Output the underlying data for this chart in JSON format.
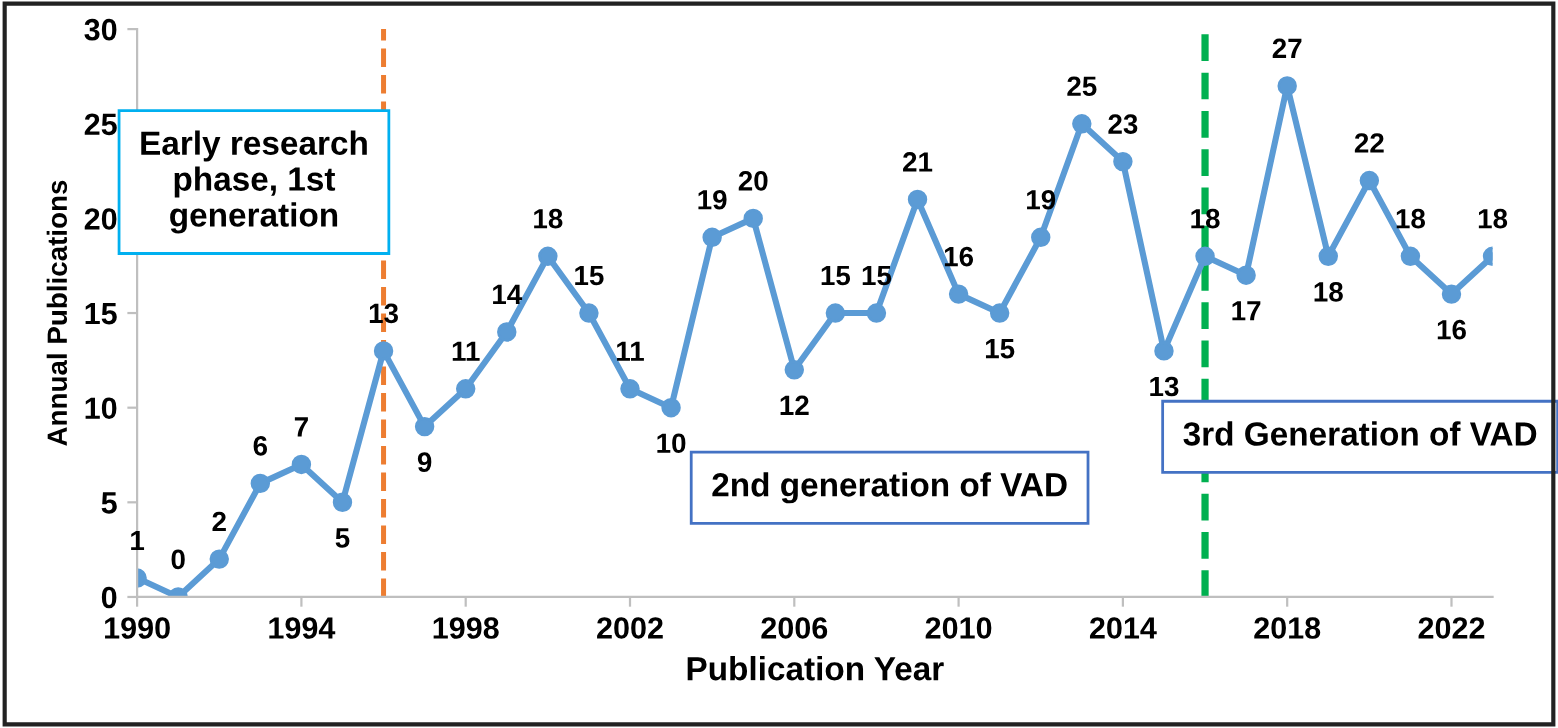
{
  "chart_data": {
    "type": "line",
    "xlabel": "Publication Year",
    "ylabel": "Annual Publications",
    "x": [
      1990,
      1991,
      1992,
      1993,
      1994,
      1995,
      1996,
      1997,
      1998,
      1999,
      2000,
      2001,
      2002,
      2003,
      2004,
      2005,
      2006,
      2007,
      2008,
      2009,
      2010,
      2011,
      2012,
      2013,
      2014,
      2015,
      2016,
      2017,
      2018,
      2019,
      2020,
      2021,
      2022,
      2023
    ],
    "series": [
      {
        "color": "#5b9bd5",
        "values": [
          1,
          0,
          2,
          6,
          7,
          5,
          13,
          9,
          11,
          14,
          18,
          15,
          11,
          10,
          19,
          20,
          12,
          15,
          15,
          21,
          16,
          15,
          19,
          25,
          23,
          13,
          18,
          17,
          27,
          18,
          22,
          18,
          16,
          18
        ]
      }
    ],
    "xlim": [
      1990,
      2023
    ],
    "xticks": [
      1990,
      1994,
      1998,
      2002,
      2006,
      2010,
      2014,
      2018,
      2022
    ],
    "ylim": [
      0,
      30
    ],
    "yticks": [
      0,
      5,
      10,
      15,
      20,
      25,
      30
    ],
    "marker": "circle",
    "line_style": "solid",
    "grid": false,
    "data_labels": true,
    "ref_lines": [
      {
        "axis": "x",
        "value": 1996,
        "color": "#ed7d31",
        "line_style": "dashed"
      },
      {
        "axis": "x",
        "value": 2016,
        "color": "#00b050",
        "line_style": "dashed"
      }
    ],
    "annotations": [
      "Early research phase, 1st generation",
      "2nd generation of VAD",
      "3rd Generation of VAD"
    ]
  }
}
